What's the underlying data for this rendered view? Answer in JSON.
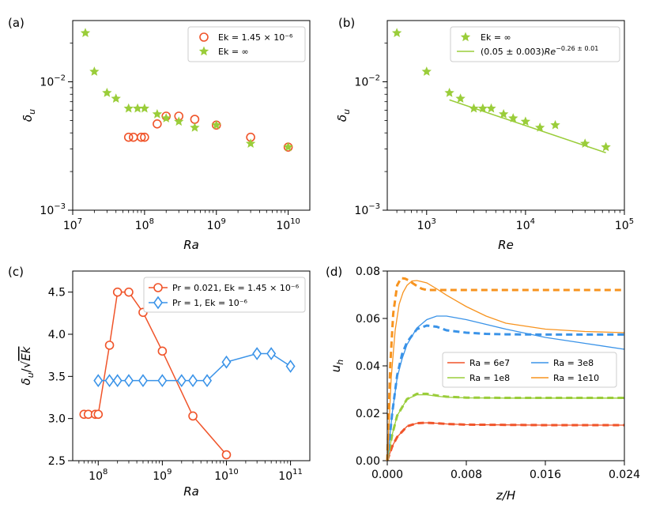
{
  "colors": {
    "orange_red": "#f0542a",
    "green": "#9acd3a",
    "blue": "#3a93e8",
    "orange": "#f7931e"
  },
  "chart_data": [
    {
      "panel_label": "(a)",
      "type": "scatter",
      "xlabel": "Ra",
      "ylabel": "δ_u",
      "xscale": "log",
      "yscale": "log",
      "xlim": [
        10000000.0,
        20000000000.0
      ],
      "ylim": [
        0.001,
        0.03
      ],
      "xticks": [
        {
          "value": 10000000.0,
          "mant": "10",
          "exp": "7"
        },
        {
          "value": 100000000.0,
          "mant": "10",
          "exp": "8"
        },
        {
          "value": 1000000000.0,
          "mant": "10",
          "exp": "9"
        },
        {
          "value": 10000000000.0,
          "mant": "10",
          "exp": "10"
        }
      ],
      "yticks": [
        {
          "value": 0.001,
          "mant": "10",
          "exp": "−3"
        },
        {
          "value": 0.01,
          "mant": "10",
          "exp": "−2"
        }
      ],
      "legend_position": "top-right",
      "series": [
        {
          "name": "Ek = 1.45 × 10⁻⁶",
          "marker": "circle",
          "color": "#f0542a",
          "x": [
            60000000.0,
            70000000.0,
            90000000.0,
            100000000.0,
            150000000.0,
            200000000.0,
            300000000.0,
            500000000.0,
            1000000000.0,
            3000000000.0,
            10000000000.0
          ],
          "y": [
            0.0037,
            0.0037,
            0.0037,
            0.0037,
            0.0047,
            0.0054,
            0.0054,
            0.0051,
            0.0046,
            0.0037,
            0.0031
          ]
        },
        {
          "name": "Ek = ∞",
          "marker": "star",
          "color": "#9acd3a",
          "x": [
            15000000.0,
            20000000.0,
            30000000.0,
            40000000.0,
            60000000.0,
            80000000.0,
            100000000.0,
            150000000.0,
            200000000.0,
            300000000.0,
            500000000.0,
            1000000000.0,
            3000000000.0,
            10000000000.0
          ],
          "y": [
            0.024,
            0.012,
            0.0082,
            0.0074,
            0.0062,
            0.0062,
            0.0062,
            0.0056,
            0.0052,
            0.0049,
            0.0044,
            0.0046,
            0.0033,
            0.0031
          ]
        }
      ]
    },
    {
      "panel_label": "(b)",
      "type": "scatter",
      "xlabel": "Re",
      "ylabel": "δ_u",
      "xscale": "log",
      "yscale": "log",
      "xlim": [
        400,
        100000.0
      ],
      "ylim": [
        0.001,
        0.03
      ],
      "xticks": [
        {
          "value": 1000,
          "mant": "10",
          "exp": "3"
        },
        {
          "value": 10000,
          "mant": "10",
          "exp": "4"
        },
        {
          "value": 100000,
          "mant": "10",
          "exp": "5"
        }
      ],
      "yticks": [
        {
          "value": 0.001,
          "mant": "10",
          "exp": "−3"
        },
        {
          "value": 0.01,
          "mant": "10",
          "exp": "−2"
        }
      ],
      "legend_position": "top-right",
      "series": [
        {
          "name": "Ek = ∞",
          "marker": "star",
          "color": "#9acd3a",
          "x": [
            500,
            1000,
            1700,
            2200,
            3000,
            3700,
            4500,
            6000,
            7500,
            10000,
            14000,
            20000,
            40000,
            65000
          ],
          "y": [
            0.024,
            0.012,
            0.0082,
            0.0074,
            0.0062,
            0.0062,
            0.0062,
            0.0056,
            0.0052,
            0.0049,
            0.0044,
            0.0046,
            0.0033,
            0.0031
          ]
        }
      ],
      "fit": {
        "name": "(0.05 ± 0.003)Re^(−0.26 ± 0.01)",
        "label_main": "(0.05 ± 0.003)",
        "label_base": "Re",
        "label_exp": "−0.26 ± 0.01",
        "coef": 0.05,
        "exponent": -0.26,
        "x": [
          1700,
          65000
        ],
        "color": "#9acd3a"
      }
    },
    {
      "panel_label": "(c)",
      "type": "line",
      "xlabel": "Ra",
      "ylabel": "δ_u/√Ek",
      "xscale": "log",
      "yscale": "linear",
      "xlim": [
        40000000.0,
        200000000000.0
      ],
      "ylim": [
        2.5,
        4.75
      ],
      "xticks": [
        {
          "value": 100000000.0,
          "mant": "10",
          "exp": "8"
        },
        {
          "value": 1000000000.0,
          "mant": "10",
          "exp": "9"
        },
        {
          "value": 10000000000.0,
          "mant": "10",
          "exp": "10"
        },
        {
          "value": 100000000000.0,
          "mant": "10",
          "exp": "11"
        }
      ],
      "yticks": [
        2.5,
        3.0,
        3.5,
        4.0,
        4.5
      ],
      "legend_position": "top-right",
      "series": [
        {
          "name": "Pr = 0.021, Ek = 1.45 × 10⁻⁶",
          "marker": "circle",
          "color": "#f0542a",
          "x": [
            60000000.0,
            70000000.0,
            90000000.0,
            100000000.0,
            150000000.0,
            200000000.0,
            300000000.0,
            500000000.0,
            1000000000.0,
            3000000000.0,
            10000000000.0
          ],
          "y": [
            3.05,
            3.05,
            3.05,
            3.05,
            3.87,
            4.5,
            4.5,
            4.26,
            3.8,
            3.03,
            2.57
          ]
        },
        {
          "name": "Pr = 1, Ek = 10⁻⁶",
          "marker": "diamond",
          "color": "#3a93e8",
          "x": [
            100000000.0,
            150000000.0,
            200000000.0,
            300000000.0,
            500000000.0,
            1000000000.0,
            2000000000.0,
            3000000000.0,
            5000000000.0,
            10000000000.0,
            30000000000.0,
            50000000000.0,
            100000000000.0
          ],
          "y": [
            3.45,
            3.45,
            3.45,
            3.45,
            3.45,
            3.45,
            3.45,
            3.45,
            3.45,
            3.67,
            3.77,
            3.77,
            3.62
          ]
        }
      ]
    },
    {
      "panel_label": "(d)",
      "type": "line",
      "xlabel": "z/H",
      "ylabel": "u_h",
      "xscale": "linear",
      "yscale": "linear",
      "xlim": [
        0,
        0.024
      ],
      "ylim": [
        0,
        0.08
      ],
      "xticks": [
        "0.000",
        "0.008",
        "0.016",
        "0.024"
      ],
      "yticks": [
        "0.00",
        "0.02",
        "0.04",
        "0.06",
        "0.08"
      ],
      "legend_position": "center-right",
      "series": [
        {
          "name": "Ra = 6e7",
          "color": "#f0542a",
          "solid": {
            "x": [
              0,
              0.0005,
              0.001,
              0.002,
              0.003,
              0.004,
              0.005,
              0.006,
              0.008,
              0.012,
              0.016,
              0.02,
              0.024
            ],
            "y": [
              0,
              0.006,
              0.01,
              0.0145,
              0.0158,
              0.016,
              0.0158,
              0.0155,
              0.0152,
              0.0151,
              0.015,
              0.015,
              0.015
            ]
          },
          "dashed": {
            "x": [
              0,
              0.0005,
              0.001,
              0.002,
              0.003,
              0.004,
              0.005,
              0.006,
              0.008,
              0.012,
              0.016,
              0.02,
              0.024
            ],
            "y": [
              0,
              0.006,
              0.01,
              0.0145,
              0.0158,
              0.016,
              0.0158,
              0.0155,
              0.0152,
              0.0151,
              0.015,
              0.015,
              0.015
            ]
          }
        },
        {
          "name": "Ra = 1e8",
          "color": "#9acd3a",
          "solid": {
            "x": [
              0,
              0.0005,
              0.001,
              0.002,
              0.003,
              0.004,
              0.005,
              0.006,
              0.008,
              0.012,
              0.016,
              0.02,
              0.024
            ],
            "y": [
              0,
              0.011,
              0.019,
              0.026,
              0.0278,
              0.0278,
              0.0272,
              0.0268,
              0.0265,
              0.0264,
              0.0264,
              0.0264,
              0.0264
            ]
          },
          "dashed": {
            "x": [
              0,
              0.0005,
              0.001,
              0.002,
              0.003,
              0.004,
              0.005,
              0.006,
              0.008,
              0.012,
              0.016,
              0.02,
              0.024
            ],
            "y": [
              0,
              0.011,
              0.019,
              0.026,
              0.0282,
              0.0282,
              0.0275,
              0.027,
              0.0266,
              0.0265,
              0.0265,
              0.0265,
              0.0265
            ]
          }
        },
        {
          "name": "Ra = 3e8",
          "color": "#3a93e8",
          "solid": {
            "x": [
              0,
              0.0005,
              0.001,
              0.0015,
              0.002,
              0.003,
              0.004,
              0.005,
              0.006,
              0.008,
              0.01,
              0.012,
              0.016,
              0.02,
              0.024
            ],
            "y": [
              0,
              0.02,
              0.035,
              0.043,
              0.049,
              0.056,
              0.0595,
              0.061,
              0.061,
              0.0595,
              0.0575,
              0.0555,
              0.052,
              0.0495,
              0.047
            ]
          },
          "dashed": {
            "x": [
              0,
              0.0005,
              0.001,
              0.0015,
              0.002,
              0.003,
              0.004,
              0.005,
              0.006,
              0.008,
              0.01,
              0.012,
              0.016,
              0.02,
              0.024
            ],
            "y": [
              0,
              0.02,
              0.036,
              0.045,
              0.05,
              0.0555,
              0.057,
              0.0565,
              0.055,
              0.054,
              0.0535,
              0.0533,
              0.0532,
              0.0532,
              0.0532
            ]
          }
        },
        {
          "name": "Ra = 1e10",
          "color": "#f7931e",
          "solid": {
            "x": [
              0,
              0.0004,
              0.0008,
              0.0012,
              0.0016,
              0.002,
              0.0025,
              0.003,
              0.004,
              0.005,
              0.006,
              0.008,
              0.01,
              0.012,
              0.016,
              0.02,
              0.024
            ],
            "y": [
              0,
              0.035,
              0.055,
              0.066,
              0.071,
              0.074,
              0.0758,
              0.076,
              0.075,
              0.0725,
              0.0698,
              0.065,
              0.061,
              0.058,
              0.0555,
              0.0545,
              0.054
            ]
          },
          "dashed": {
            "x": [
              0,
              0.0003,
              0.0006,
              0.001,
              0.0014,
              0.0018,
              0.0022,
              0.0026,
              0.003,
              0.0035,
              0.004,
              0.005,
              0.008,
              0.012,
              0.016,
              0.02,
              0.024
            ],
            "y": [
              0,
              0.04,
              0.062,
              0.074,
              0.077,
              0.0768,
              0.076,
              0.0748,
              0.0737,
              0.0725,
              0.072,
              0.072,
              0.072,
              0.072,
              0.072,
              0.072,
              0.072
            ]
          }
        }
      ]
    }
  ]
}
